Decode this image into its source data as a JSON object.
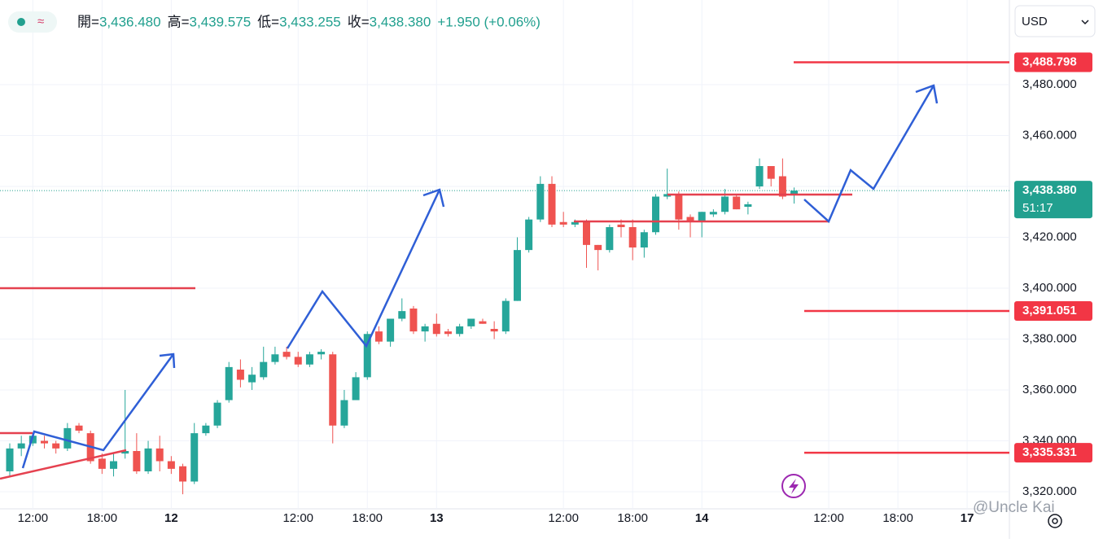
{
  "chart_data": {
    "type": "candlestick",
    "currency": "USD",
    "ohlc_legend": [
      {
        "key": "開=",
        "value": "3,436.480"
      },
      {
        "key": "高=",
        "value": "3,439.575"
      },
      {
        "key": "低=",
        "value": "3,433.255"
      },
      {
        "key": "收=",
        "value": "3,438.380"
      }
    ],
    "change": "+1.950 (+0.06%)",
    "watermark": "@Uncle Kai",
    "categories": [
      null,
      null,
      "12:00",
      null,
      null,
      null,
      null,
      null,
      "18:00",
      null,
      null,
      null,
      null,
      null,
      "12",
      null,
      null,
      null,
      null,
      null,
      null,
      null,
      null,
      null,
      null,
      "12:00",
      null,
      null,
      null,
      null,
      null,
      "18:00",
      null,
      null,
      null,
      null,
      null,
      "13",
      null,
      null,
      null,
      null,
      null,
      null,
      null,
      null,
      null,
      null,
      "12:00",
      null,
      null,
      null,
      null,
      null,
      "18:00",
      null,
      null,
      null,
      null,
      null,
      "14",
      null,
      null,
      null,
      null,
      null,
      null,
      null,
      null,
      null,
      null,
      "12:00",
      null,
      null,
      null,
      null,
      null,
      "18:00",
      null,
      null,
      null,
      null,
      null,
      "17",
      null,
      null,
      null
    ],
    "series": [
      {
        "up_color": "#26a69a",
        "down_color": "#ef5350",
        "open": [
          3328,
          3337,
          3339,
          3340,
          3339,
          3337,
          3346,
          3343,
          3333,
          3329,
          3335,
          3336,
          3328,
          3337,
          3332,
          3330,
          3324,
          3343,
          3346,
          3356,
          3368,
          3363,
          3365,
          3371,
          3375,
          3373,
          3370,
          3374,
          3374,
          3346,
          3356,
          3365,
          3383,
          3379,
          3388,
          3392,
          3383,
          3386,
          3383,
          3382,
          3385,
          3387,
          3384,
          3383,
          3395,
          3415,
          3427,
          3441,
          3426,
          3425,
          3426,
          3417,
          3415,
          3425,
          3424,
          3416,
          3422,
          3436,
          3437,
          3428,
          3426,
          3429,
          3430,
          3436,
          3432,
          3440,
          3448,
          3444,
          3436.48,
          null,
          null,
          null,
          null,
          null,
          null,
          null,
          null,
          null,
          null,
          null,
          null,
          null,
          null,
          null,
          null,
          null,
          null
        ],
        "high": [
          3339,
          3342,
          3343,
          3342,
          3340,
          3347,
          3347,
          3344,
          3335,
          3335,
          3360,
          3343,
          3340,
          3342,
          3334,
          3331,
          3347,
          3347,
          3356,
          3371,
          3372,
          3369,
          3377,
          3377,
          3377,
          3375,
          3375,
          3376,
          3375,
          3360,
          3367,
          3383,
          3385,
          3388,
          3396,
          3393,
          3386,
          3390,
          3384,
          3386,
          3388,
          3388,
          3387,
          3396,
          3420,
          3428,
          3444,
          3444,
          3430,
          3427,
          3427,
          3417,
          3425,
          3427,
          3427,
          3423,
          3437,
          3447,
          3438,
          3429,
          3430,
          3431,
          3439,
          3437,
          3434,
          3451,
          3448,
          3451,
          3439.575,
          null,
          null,
          null,
          null,
          null,
          null,
          null,
          null,
          null,
          null,
          null,
          null,
          null,
          null,
          null,
          null,
          null,
          null
        ],
        "low": [
          3326,
          3334,
          3338,
          3337,
          3335,
          3336,
          3343,
          3331,
          3327,
          3326,
          3333,
          3327,
          3327,
          3328,
          3327,
          3319,
          3323,
          3342,
          3345,
          3355,
          3361,
          3360,
          3364,
          3370,
          3372,
          3369,
          3369,
          3372,
          3339,
          3345,
          3356,
          3364,
          3378,
          3377,
          3387,
          3382,
          3379,
          3381,
          3381,
          3381,
          3384,
          3386,
          3380,
          3382,
          3395,
          3414,
          3426,
          3424,
          3424,
          3424,
          3408,
          3407,
          3414,
          3420,
          3411,
          3412,
          3421,
          3435,
          3423,
          3420,
          3420,
          3428,
          3429,
          3431,
          3429,
          3439,
          3440,
          3435,
          3433.255,
          null,
          null,
          null,
          null,
          null,
          null,
          null,
          null,
          null,
          null,
          null,
          null,
          null,
          null,
          null,
          null,
          null,
          null
        ],
        "close": [
          3337,
          3339,
          3342,
          3339,
          3337,
          3345,
          3344,
          3332,
          3329,
          3332,
          3336,
          3328,
          3337,
          3332,
          3329,
          3324,
          3343,
          3346,
          3355,
          3369,
          3364,
          3366,
          3371,
          3374,
          3373,
          3370,
          3374,
          3375,
          3346,
          3356,
          3365,
          3382,
          3379,
          3388,
          3391,
          3383,
          3385,
          3382,
          3382,
          3385,
          3388,
          3386,
          3383,
          3395,
          3415,
          3427,
          3441,
          3425,
          3425,
          3426,
          3417,
          3415,
          3424,
          3424,
          3416,
          3422,
          3436,
          3437,
          3427,
          3426,
          3430,
          3430,
          3436,
          3431,
          3433,
          3448,
          3443,
          3436,
          3438.38,
          null,
          null,
          null,
          null,
          null,
          null,
          null,
          null,
          null,
          null,
          null,
          null,
          null,
          null,
          null,
          null,
          null,
          null
        ]
      }
    ],
    "ylim": [
      3313.28,
      3513.28
    ],
    "yticks": [
      {
        "value": 3320,
        "label": "3,320.000"
      },
      {
        "value": 3340,
        "label": "3,340.000"
      },
      {
        "value": 3360,
        "label": "3,360.000"
      },
      {
        "value": 3380,
        "label": "3,380.000"
      },
      {
        "value": 3400,
        "label": "3,400.000"
      },
      {
        "value": 3420,
        "label": "3,420.000"
      },
      {
        "value": 3440,
        "label": "3,440.000"
      },
      {
        "value": 3460,
        "label": "3,460.000"
      },
      {
        "value": 3480,
        "label": "3,480.000"
      }
    ],
    "levels": [
      {
        "value": 3488.798,
        "label": "3,488.798",
        "color": "#f23645"
      },
      {
        "value": 3391.051,
        "label": "3,391.051",
        "color": "#f23645"
      },
      {
        "value": 3335.331,
        "label": "3,335.331",
        "color": "#f23645"
      }
    ],
    "last_price": {
      "value": 3438.38,
      "label": "3,438.380",
      "countdown": "51:17",
      "color": "#22a08f"
    },
    "grid": true
  }
}
